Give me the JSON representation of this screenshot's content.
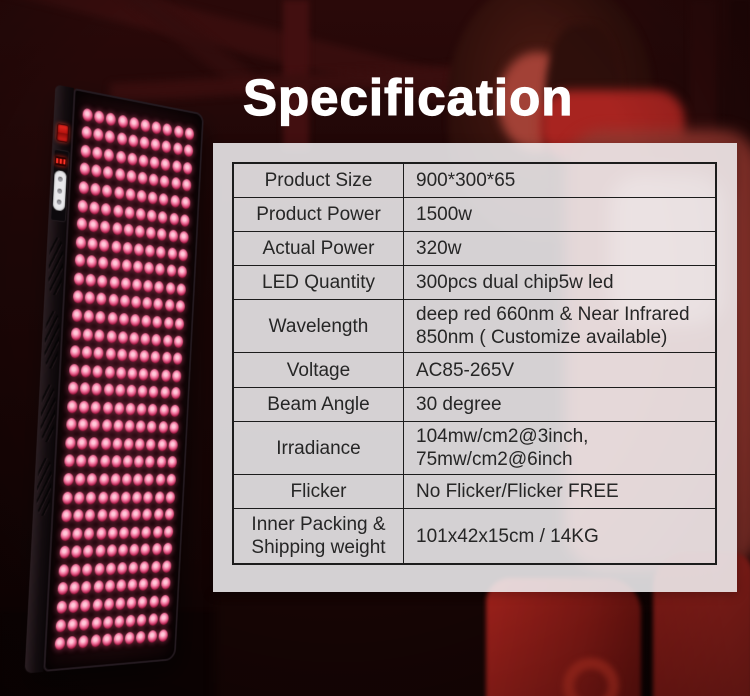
{
  "title": "Specification",
  "spec_table": {
    "rows": [
      {
        "label": "Product Size",
        "value": "900*300*65"
      },
      {
        "label": "Product Power",
        "value": "1500w"
      },
      {
        "label": "Actual Power",
        "value": "320w"
      },
      {
        "label": "LED Quantity",
        "value": "300pcs dual chip5w led"
      },
      {
        "label": "Wavelength",
        "value": "deep red 660nm & Near Infrared\n850nm ( Customize available)"
      },
      {
        "label": "Voltage",
        "value": "AC85-265V"
      },
      {
        "label": "Beam Angle",
        "value": "30 degree"
      },
      {
        "label": "Irradiance",
        "value": "104mw/cm2@3inch,\n75mw/cm2@6inch"
      },
      {
        "label": "Flicker",
        "value": "No Flicker/Flicker FREE"
      },
      {
        "label": "Inner Packing &\nShipping weight",
        "value": "101x42x15cm / 14KG"
      }
    ]
  },
  "device": {
    "led_rows": 30,
    "led_cols": 10
  },
  "colors": {
    "table_line": "#1c1c1c",
    "table_text": "#262626",
    "title_text": "#ffffff",
    "overlay": "rgba(241,240,242,0.87)",
    "led_core": "#ffc9d9",
    "led_mid": "#ef6f9a",
    "led_ring": "#b3214e",
    "accent_red": "#a82420"
  }
}
